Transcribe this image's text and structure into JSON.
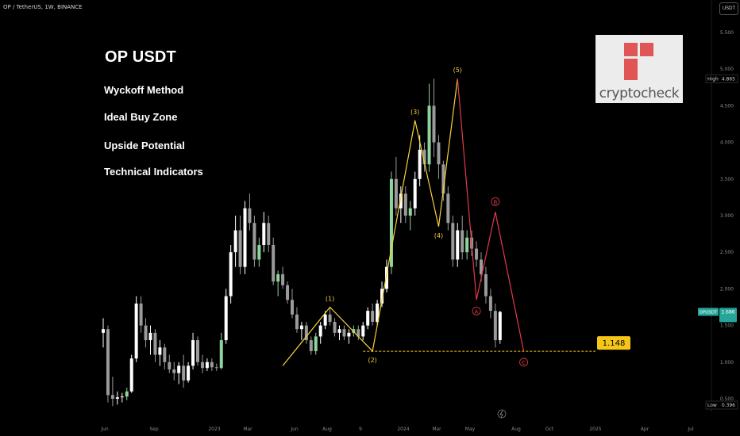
{
  "header": {
    "symbol_line": "OP / TetherUS, 1W, BINANCE",
    "currency_tag": "USDT"
  },
  "overlay": {
    "title": "OP USDT",
    "topics": [
      "Wyckoff Method",
      "Ideal Buy Zone",
      "Upside Potential",
      "Technical Indicators"
    ],
    "logo_text": "cryptocheck"
  },
  "price_axis": {
    "ticks": [
      "5.500",
      "5.000",
      "4.500",
      "4.000",
      "3.500",
      "3.000",
      "2.500",
      "2.000",
      "1.500",
      "1.000",
      "0.500"
    ],
    "high_label": "High",
    "high_value": "4.865",
    "low_label": "Low",
    "low_value": "0.396",
    "current_label": "OPUSDT",
    "current_value": "1.686"
  },
  "colors": {
    "background": "#000000",
    "up_candle": "#ffffff",
    "up_candle_green": "#8fd49a",
    "down_candle": "#9a9a9a",
    "impulse_wave": "#f7d23a",
    "correction_wave": "#e23b4a",
    "support_line": "#f5c518",
    "current_price_tag": "#26a69a"
  },
  "chart_data": {
    "type": "candlestick",
    "x_ticks": [
      "Jun",
      "Sep",
      "2023",
      "Mar",
      "Jun",
      "Aug",
      "9",
      "2024",
      "Mar",
      "May",
      "Aug",
      "Oct",
      "2025",
      "Apr",
      "Jul"
    ],
    "y_range": [
      0.3,
      5.8
    ],
    "y_ticks": [
      0.5,
      1.0,
      1.5,
      2.0,
      2.5,
      3.0,
      3.5,
      4.0,
      4.5,
      5.0,
      5.5
    ],
    "candles": [
      [
        1.4,
        1.6,
        1.2,
        1.45
      ],
      [
        1.45,
        1.5,
        0.45,
        0.55
      ],
      [
        0.55,
        0.8,
        0.4,
        0.5
      ],
      [
        0.5,
        0.6,
        0.42,
        0.52
      ],
      [
        0.52,
        0.58,
        0.45,
        0.53
      ],
      [
        0.53,
        0.65,
        0.48,
        0.6
      ],
      [
        0.6,
        1.1,
        0.58,
        1.05
      ],
      [
        1.05,
        1.9,
        1.0,
        1.8
      ],
      [
        1.8,
        1.9,
        1.4,
        1.5
      ],
      [
        1.5,
        1.6,
        1.2,
        1.3
      ],
      [
        1.3,
        1.5,
        1.1,
        1.4
      ],
      [
        1.4,
        1.45,
        1.0,
        1.1
      ],
      [
        1.1,
        1.3,
        0.95,
        1.2
      ],
      [
        1.2,
        1.25,
        0.9,
        1.0
      ],
      [
        1.0,
        1.1,
        0.85,
        0.9
      ],
      [
        0.9,
        1.0,
        0.75,
        0.85
      ],
      [
        0.85,
        1.0,
        0.7,
        0.95
      ],
      [
        0.95,
        1.1,
        0.65,
        0.75
      ],
      [
        0.75,
        1.0,
        0.72,
        0.95
      ],
      [
        0.95,
        1.4,
        0.9,
        1.3
      ],
      [
        1.3,
        1.35,
        0.95,
        1.0
      ],
      [
        1.0,
        1.1,
        0.85,
        0.92
      ],
      [
        0.92,
        1.05,
        0.88,
        1.0
      ],
      [
        1.0,
        1.05,
        0.88,
        0.93
      ],
      [
        0.93,
        0.98,
        0.88,
        0.92
      ],
      [
        0.92,
        1.4,
        0.9,
        1.3
      ],
      [
        1.3,
        2.0,
        1.25,
        1.9
      ],
      [
        1.9,
        2.6,
        1.8,
        2.5
      ],
      [
        2.5,
        3.0,
        2.3,
        2.8
      ],
      [
        2.8,
        3.0,
        2.2,
        2.3
      ],
      [
        2.3,
        3.2,
        2.2,
        3.1
      ],
      [
        3.1,
        3.3,
        2.8,
        2.9
      ],
      [
        2.9,
        3.0,
        2.3,
        2.4
      ],
      [
        2.4,
        2.7,
        2.3,
        2.6
      ],
      [
        2.6,
        3.05,
        2.5,
        2.9
      ],
      [
        2.9,
        3.0,
        2.5,
        2.6
      ],
      [
        2.6,
        2.7,
        2.05,
        2.1
      ],
      [
        2.1,
        2.25,
        1.9,
        2.2
      ],
      [
        2.2,
        2.3,
        2.0,
        2.05
      ],
      [
        2.05,
        2.1,
        1.8,
        1.85
      ],
      [
        1.85,
        2.0,
        1.6,
        1.65
      ],
      [
        1.65,
        1.75,
        1.4,
        1.45
      ],
      [
        1.45,
        1.55,
        1.3,
        1.5
      ],
      [
        1.5,
        1.55,
        1.25,
        1.3
      ],
      [
        1.3,
        1.35,
        1.1,
        1.15
      ],
      [
        1.15,
        1.4,
        1.1,
        1.35
      ],
      [
        1.35,
        1.55,
        1.25,
        1.5
      ],
      [
        1.5,
        1.7,
        1.45,
        1.65
      ],
      [
        1.65,
        1.75,
        1.5,
        1.55
      ],
      [
        1.55,
        1.6,
        1.35,
        1.4
      ],
      [
        1.4,
        1.5,
        1.3,
        1.45
      ],
      [
        1.45,
        1.5,
        1.3,
        1.35
      ],
      [
        1.35,
        1.45,
        1.25,
        1.4
      ],
      [
        1.4,
        1.5,
        1.35,
        1.45
      ],
      [
        1.45,
        1.5,
        1.3,
        1.35
      ],
      [
        1.35,
        1.55,
        1.3,
        1.5
      ],
      [
        1.5,
        1.75,
        1.45,
        1.7
      ],
      [
        1.7,
        1.8,
        1.5,
        1.55
      ],
      [
        1.55,
        1.85,
        1.5,
        1.8
      ],
      [
        1.8,
        2.1,
        1.75,
        2.0
      ],
      [
        2.0,
        2.4,
        1.95,
        2.3
      ],
      [
        2.3,
        3.6,
        2.2,
        3.5
      ],
      [
        3.5,
        3.8,
        3.0,
        3.1
      ],
      [
        3.1,
        3.4,
        2.9,
        3.3
      ],
      [
        3.3,
        3.4,
        2.9,
        3.0
      ],
      [
        3.0,
        3.2,
        2.8,
        3.1
      ],
      [
        3.1,
        3.6,
        3.0,
        3.5
      ],
      [
        3.5,
        4.1,
        3.4,
        3.9
      ],
      [
        3.9,
        4.0,
        3.6,
        3.7
      ],
      [
        3.7,
        4.8,
        3.6,
        4.5
      ],
      [
        4.5,
        4.87,
        3.8,
        4.0
      ],
      [
        4.0,
        4.1,
        3.5,
        3.7
      ],
      [
        3.7,
        3.75,
        3.2,
        3.3
      ],
      [
        3.3,
        3.4,
        2.8,
        2.9
      ],
      [
        2.9,
        3.0,
        2.3,
        2.4
      ],
      [
        2.4,
        2.9,
        2.3,
        2.8
      ],
      [
        2.8,
        3.0,
        2.4,
        2.5
      ],
      [
        2.5,
        2.8,
        2.4,
        2.7
      ],
      [
        2.7,
        2.8,
        2.45,
        2.55
      ],
      [
        2.55,
        2.65,
        2.3,
        2.4
      ],
      [
        2.4,
        2.5,
        2.1,
        2.2
      ],
      [
        2.2,
        2.3,
        1.8,
        1.9
      ],
      [
        1.9,
        2.0,
        1.6,
        1.7
      ],
      [
        1.7,
        1.8,
        1.2,
        1.3
      ],
      [
        1.3,
        1.7,
        1.25,
        1.686
      ]
    ],
    "impulse_wave": {
      "labels": [
        "(1)",
        "(2)",
        "(3)",
        "(4)",
        "(5)"
      ],
      "points": [
        [
          38,
          0.95
        ],
        [
          48,
          1.75
        ],
        [
          57,
          1.15
        ],
        [
          66,
          4.3
        ],
        [
          71,
          2.85
        ],
        [
          75,
          4.87
        ]
      ]
    },
    "correction_wave": {
      "labels": [
        "A",
        "B",
        "C"
      ],
      "points": [
        [
          75,
          4.87
        ],
        [
          79,
          1.85
        ],
        [
          83,
          3.05
        ],
        [
          89,
          1.15
        ]
      ]
    },
    "support_level": {
      "value": 1.148,
      "label": "1.148"
    },
    "annotations": [
      "(1)",
      "(2)",
      "(3)",
      "(4)",
      "(5)",
      "A",
      "B",
      "C"
    ]
  }
}
